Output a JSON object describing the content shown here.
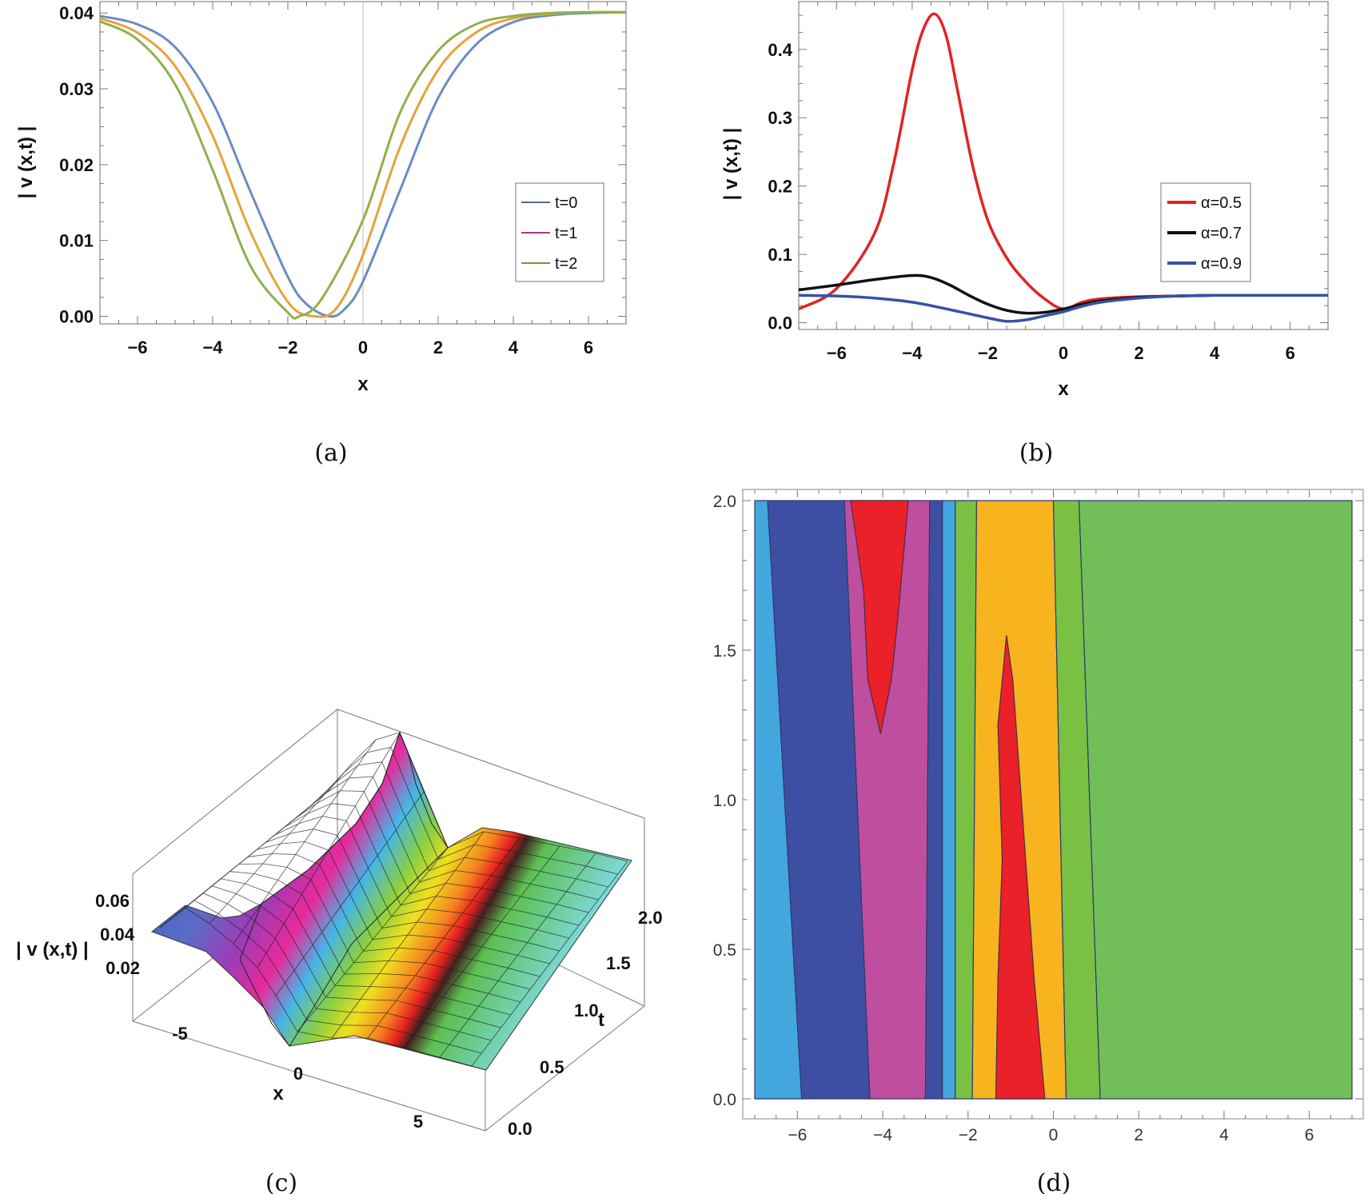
{
  "captions": {
    "a": "(a)",
    "b": "(b)",
    "c": "(c)",
    "d": "(d)"
  },
  "chart_data": [
    {
      "panel": "a",
      "type": "line",
      "xlabel": "x",
      "ylabel": "| v (x,t) |",
      "xlim": [
        -7,
        7
      ],
      "ylim": [
        -0.001,
        0.0415
      ],
      "xticks": [
        "-6",
        "-4",
        "-2",
        "0",
        "2",
        "4",
        "6"
      ],
      "yticks": [
        "0.00",
        "0.01",
        "0.02",
        "0.03",
        "0.04"
      ],
      "legend_position": "right",
      "series": [
        {
          "name": "t=0",
          "color": "#6a8dc2",
          "legend_color": "#4e6aa8",
          "x": [
            -7,
            -6,
            -5,
            -4,
            -3,
            -2,
            -1.5,
            -0.9,
            -0.5,
            0,
            1,
            2,
            3,
            4,
            5,
            6,
            7
          ],
          "y": [
            0.0396,
            0.0385,
            0.0355,
            0.0282,
            0.0165,
            0.0052,
            0.0016,
            0.0,
            0.0009,
            0.0046,
            0.0168,
            0.0288,
            0.0358,
            0.0388,
            0.0397,
            0.04,
            0.0401
          ]
        },
        {
          "name": "t=1",
          "color": "#e8a13a",
          "legend_color": "#9b3b8f",
          "x": [
            -7,
            -6,
            -5,
            -4,
            -3,
            -2,
            -1.3,
            -0.7,
            0,
            1,
            2,
            3,
            4,
            5,
            6,
            7
          ],
          "y": [
            0.0393,
            0.0374,
            0.033,
            0.0238,
            0.0112,
            0.0019,
            0.0,
            0.0011,
            0.0081,
            0.0225,
            0.0325,
            0.0374,
            0.0393,
            0.0399,
            0.0401,
            0.0401
          ]
        },
        {
          "name": "t=2",
          "color": "#8fb14a",
          "legend_color": "#8a8a3a",
          "x": [
            -7,
            -6,
            -5,
            -4,
            -3,
            -2,
            -1.7,
            -1.1,
            0,
            1,
            2,
            3,
            4,
            5,
            6,
            7
          ],
          "y": [
            0.0389,
            0.0365,
            0.0306,
            0.0193,
            0.0067,
            0.0005,
            0.0,
            0.0023,
            0.0127,
            0.027,
            0.035,
            0.0385,
            0.0396,
            0.04,
            0.0401,
            0.0401
          ]
        }
      ]
    },
    {
      "panel": "b",
      "type": "line",
      "xlabel": "x",
      "ylabel": "| v (x,t) |",
      "xlim": [
        -7,
        7
      ],
      "ylim": [
        -0.01,
        0.47
      ],
      "xticks": [
        "-6",
        "-4",
        "-2",
        "0",
        "2",
        "4",
        "6"
      ],
      "yticks": [
        "0.0",
        "0.1",
        "0.2",
        "0.3",
        "0.4"
      ],
      "legend_position": "right",
      "series": [
        {
          "name": "α=0.5",
          "color": "#e02424",
          "x": [
            -7,
            -6,
            -5,
            -4.5,
            -4,
            -3.7,
            -3.4,
            -3.1,
            -2.8,
            -2.4,
            -2,
            -1.5,
            -1,
            -0.5,
            0,
            0.5,
            1,
            2,
            3,
            4,
            5,
            6,
            7
          ],
          "y": [
            0.02,
            0.05,
            0.13,
            0.23,
            0.37,
            0.43,
            0.452,
            0.42,
            0.34,
            0.23,
            0.15,
            0.095,
            0.06,
            0.035,
            0.02,
            0.03,
            0.035,
            0.038,
            0.039,
            0.04,
            0.04,
            0.04,
            0.04
          ]
        },
        {
          "name": "α=0.7",
          "color": "#111111",
          "x": [
            -7,
            -6,
            -5,
            -4,
            -3.5,
            -3,
            -2.5,
            -2,
            -1.5,
            -1,
            -0.5,
            0,
            0.5,
            1,
            2,
            3,
            4,
            5,
            6,
            7
          ],
          "y": [
            0.048,
            0.055,
            0.063,
            0.069,
            0.066,
            0.055,
            0.04,
            0.027,
            0.018,
            0.014,
            0.015,
            0.02,
            0.027,
            0.032,
            0.037,
            0.039,
            0.04,
            0.04,
            0.04,
            0.04
          ]
        },
        {
          "name": "α=0.9",
          "color": "#3652a3",
          "x": [
            -7,
            -6,
            -5,
            -4,
            -3,
            -2,
            -1.5,
            -1,
            -0.5,
            0,
            0.5,
            1,
            2,
            3,
            4,
            5,
            6,
            7
          ],
          "y": [
            0.04,
            0.039,
            0.036,
            0.03,
            0.019,
            0.007,
            0.002,
            0.004,
            0.01,
            0.016,
            0.024,
            0.03,
            0.036,
            0.039,
            0.04,
            0.04,
            0.04,
            0.04
          ]
        }
      ]
    },
    {
      "panel": "c",
      "type": "surface3d",
      "xlabel": "x",
      "ylabel": "t",
      "zlabel": "| v (x,t) |",
      "xticks": [
        "-5",
        "0",
        "5"
      ],
      "yticks": [
        "0.0",
        "0.5",
        "1.0",
        "1.5",
        "2.0"
      ],
      "zticks": [
        "0.02",
        "0.04",
        "0.06"
      ],
      "x": [
        -7,
        7
      ],
      "t": [
        0,
        2
      ],
      "surface_colors": [
        "#3b5fb8",
        "#9e3bb5",
        "#e82a9a",
        "#f4a020",
        "#e8e020",
        "#e82020",
        "#5cc050",
        "#7dd8d8"
      ]
    },
    {
      "panel": "d",
      "type": "contour",
      "xlim": [
        -7,
        7
      ],
      "ylim": [
        0,
        2
      ],
      "xticks": [
        "-6",
        "-4",
        "-2",
        "0",
        "2",
        "4",
        "6"
      ],
      "yticks": [
        "0.0",
        "0.5",
        "1.0",
        "1.5",
        "2.0"
      ],
      "bands": [
        {
          "color": "#43a7de",
          "x_bottom": [
            -7.0,
            -5.9
          ],
          "x_top": [
            -7.0,
            -6.7
          ]
        },
        {
          "color": "#3e4fa3",
          "x_bottom": [
            -5.9,
            -4.3
          ],
          "x_top": [
            -6.7,
            -4.9
          ]
        },
        {
          "color": "#c04e9f",
          "x_bottom": [
            -4.3,
            -3.0
          ],
          "x_top": [
            -4.9,
            -2.9
          ]
        },
        {
          "color": "#3e4fa3",
          "x_bottom": [
            -3.0,
            -2.6
          ],
          "x_top": [
            -2.9,
            -2.6
          ]
        },
        {
          "color": "#43a7de",
          "x_bottom": [
            -2.6,
            -2.3
          ],
          "x_top": [
            -2.6,
            -2.3
          ]
        },
        {
          "color": "#7ac143",
          "x_bottom": [
            -2.3,
            -1.9
          ],
          "x_top": [
            -2.3,
            -1.8
          ]
        },
        {
          "color": "#f8b41f",
          "x_bottom": [
            -1.9,
            0.3
          ],
          "x_top": [
            -1.8,
            0.0
          ]
        },
        {
          "color": "#7ac143",
          "x_bottom": [
            0.3,
            1.1
          ],
          "x_top": [
            0.0,
            0.6
          ]
        },
        {
          "color": "#72bf5a",
          "x_bottom": [
            1.1,
            7.0
          ],
          "x_top": [
            0.6,
            7.0
          ]
        }
      ],
      "islands": [
        {
          "color": "#ea2128",
          "points": [
            [
              -4.05,
              1.22
            ],
            [
              -4.35,
              1.4
            ],
            [
              -4.45,
              1.7
            ],
            [
              -4.75,
              2.0
            ],
            [
              -3.4,
              2.0
            ],
            [
              -3.65,
              1.6
            ],
            [
              -3.8,
              1.4
            ]
          ]
        },
        {
          "color": "#ea2128",
          "points": [
            [
              -1.35,
              0.0
            ],
            [
              -1.3,
              0.4
            ],
            [
              -1.2,
              0.8
            ],
            [
              -1.3,
              1.25
            ],
            [
              -1.1,
              1.55
            ],
            [
              -0.95,
              1.4
            ],
            [
              -0.7,
              0.9
            ],
            [
              -0.45,
              0.4
            ],
            [
              -0.2,
              0.0
            ]
          ]
        }
      ]
    }
  ]
}
